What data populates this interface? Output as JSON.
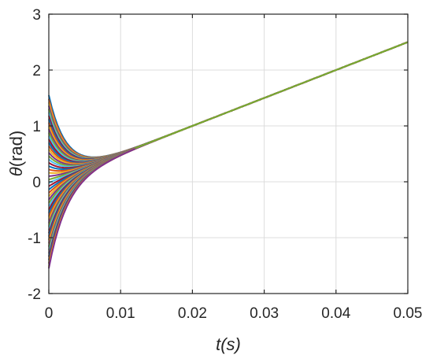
{
  "chart_data": {
    "type": "line",
    "xlabel": "t(s)",
    "ylabel_symbol": "θ",
    "ylabel_unit": "(rad)",
    "xlim": [
      0,
      0.05
    ],
    "ylim": [
      -2,
      3
    ],
    "xticks": [
      0,
      0.01,
      0.02,
      0.03,
      0.04,
      0.05
    ],
    "xtick_labels": [
      "0",
      "0.01",
      "0.02",
      "0.03",
      "0.04",
      "0.05"
    ],
    "yticks": [
      -2,
      -1,
      0,
      1,
      2,
      3
    ],
    "ytick_labels": [
      "-2",
      "-1",
      "0",
      "1",
      "2",
      "3"
    ],
    "grid": true,
    "legend": "none",
    "reference_trajectory": {
      "slope": 50,
      "intercept": 0
    },
    "convergence_rate": 400,
    "initial_values": [
      1.55,
      1.48,
      1.42,
      1.36,
      1.3,
      1.24,
      1.18,
      1.12,
      1.06,
      1.0,
      0.94,
      0.88,
      0.82,
      0.76,
      0.7,
      0.64,
      0.58,
      0.52,
      0.46,
      0.4,
      0.34,
      0.28,
      0.22,
      0.16,
      0.1,
      0.04,
      -0.02,
      -0.08,
      -0.14,
      -0.2,
      -0.26,
      -0.32,
      -0.38,
      -0.44,
      -0.5,
      -0.56,
      -0.62,
      -0.68,
      -0.74,
      -0.8,
      -0.86,
      -0.92,
      -0.98,
      -1.04,
      -1.1,
      -1.16,
      -1.22,
      -1.28,
      -1.34,
      -1.4,
      -1.46,
      -1.52,
      -1.55
    ],
    "series_colors": [
      "#0072BD",
      "#D95319",
      "#EDB120",
      "#7E2F8E",
      "#77AC30",
      "#4DBEEE",
      "#A2142F"
    ],
    "final_color": "#77AC30"
  }
}
